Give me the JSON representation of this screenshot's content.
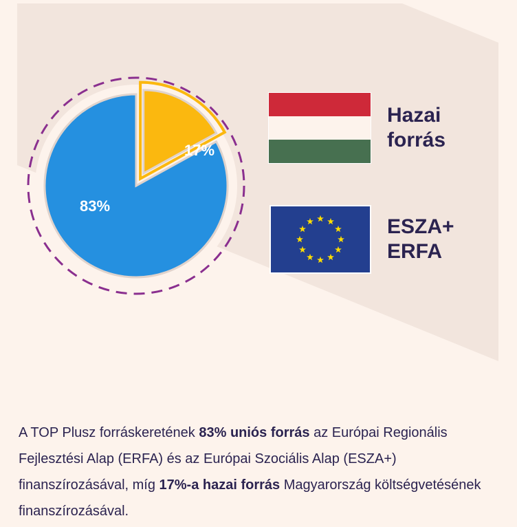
{
  "chart_data": {
    "type": "pie",
    "slices": [
      {
        "label": "83%",
        "value": 83,
        "color": "#2590e0"
      },
      {
        "label": "17%",
        "value": 17,
        "color": "#fbb80f"
      }
    ],
    "legend": [
      {
        "label": "Hazai\nforrás",
        "flag": "hungary-flag"
      },
      {
        "label": "ESZA+\nERFA",
        "flag": "eu-flag"
      }
    ]
  },
  "description": {
    "part1": "A TOP Plusz forráskeretének ",
    "bold1": "83% uniós forrás",
    "part2": " az Európai Regionális Fejlesztési Alap (ERFA) és az Európai Szociális Alap (ESZA+) finanszírozásával, míg ",
    "bold2": "17%-a hazai forrás",
    "part3": " Magyarország költségvetésének finanszírozásával."
  },
  "colors": {
    "background": "#fdf3ec",
    "panel": "#f2e5dd",
    "text": "#2b2350",
    "dash": "#8a2f8f",
    "flag_red": "#ce2939",
    "flag_white": "#fdf3ec",
    "flag_green": "#477050",
    "eu_blue": "#233f8f",
    "eu_star": "#ffdd00"
  }
}
